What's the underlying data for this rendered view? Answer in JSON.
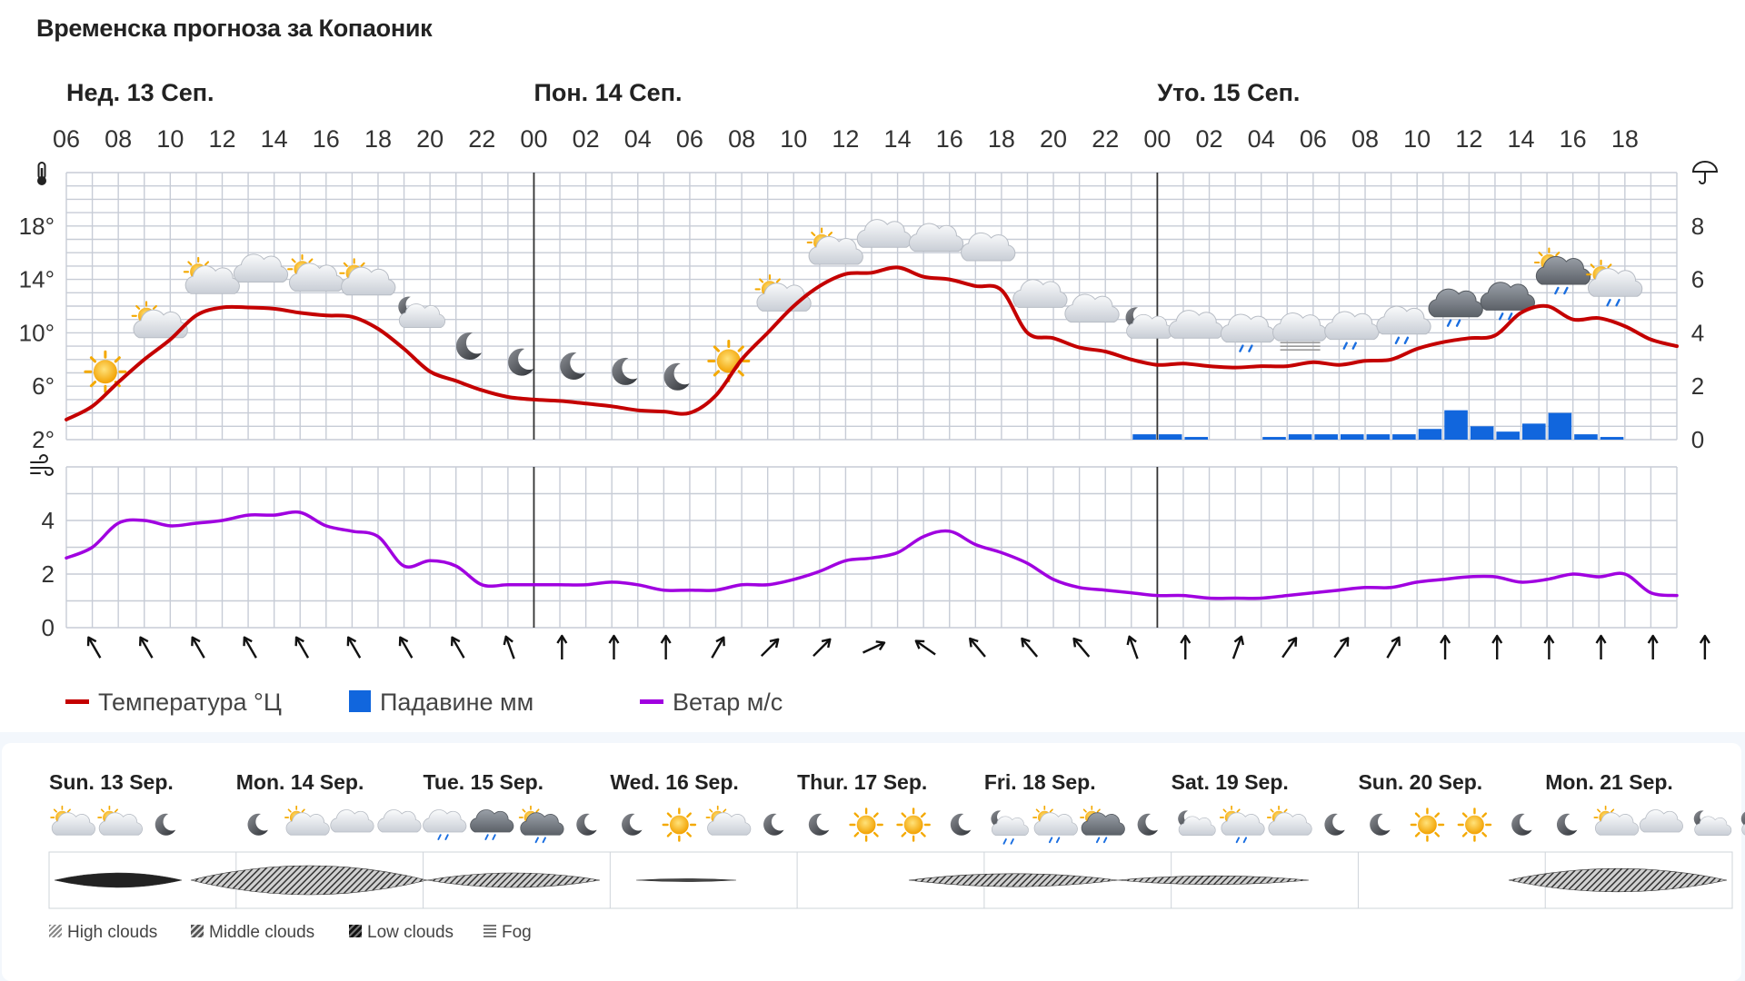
{
  "title": "Временска прогноза за Копаоник",
  "day_headers": [
    "Нед. 13 Сеп.",
    "Пон. 14 Сеп.",
    "Уто. 15 Сеп."
  ],
  "hour_labels": [
    "06",
    "08",
    "10",
    "12",
    "14",
    "16",
    "18",
    "20",
    "22",
    "00",
    "02",
    "04",
    "06",
    "08",
    "10",
    "12",
    "14",
    "16",
    "18",
    "20",
    "22",
    "00",
    "02",
    "04",
    "06",
    "08",
    "10",
    "12",
    "14",
    "16",
    "18"
  ],
  "legend": {
    "temperature": "Температура °Ц",
    "precipitation": "Падавине мм",
    "wind": "Ветар м/с"
  },
  "colors": {
    "temperature": "#c40000",
    "precipitation": "#1166dd",
    "wind": "#a000e0",
    "grid": "#c7ccd6",
    "day_divider": "#333333"
  },
  "chart_data": [
    {
      "type": "line",
      "name": "temperature",
      "unit": "°",
      "y_ticks": [
        "2°",
        "6°",
        "10°",
        "14°",
        "18°"
      ],
      "ylim": [
        2,
        22
      ],
      "x_hours": [
        6,
        7,
        8,
        9,
        10,
        11,
        12,
        13,
        14,
        15,
        16,
        17,
        18,
        19,
        20,
        21,
        22,
        23,
        24,
        25,
        26,
        27,
        28,
        29,
        30,
        31,
        32,
        33,
        34,
        35,
        36,
        37,
        38,
        39,
        40,
        41,
        42,
        43,
        44,
        45,
        46,
        47,
        48,
        49,
        50,
        51,
        52,
        53,
        54,
        55,
        56,
        57,
        58,
        59,
        60,
        61,
        62,
        63,
        64,
        65,
        66,
        67,
        68
      ],
      "values": [
        3.5,
        4.5,
        6.3,
        8.0,
        9.5,
        11.3,
        11.9,
        11.9,
        11.8,
        11.5,
        11.3,
        11.2,
        10.3,
        8.8,
        7.1,
        6.4,
        5.7,
        5.2,
        5.0,
        4.9,
        4.7,
        4.5,
        4.2,
        4.1,
        4.0,
        5.3,
        8.0,
        10.0,
        12.0,
        13.5,
        14.4,
        14.5,
        14.9,
        14.2,
        14.0,
        13.5,
        13.2,
        10.0,
        9.6,
        8.9,
        8.6,
        8.0,
        7.6,
        7.7,
        7.5,
        7.4,
        7.5,
        7.5,
        7.8,
        7.6,
        7.9,
        8.0,
        8.8,
        9.3,
        9.6,
        9.8,
        11.5,
        12.0,
        11.0,
        11.1,
        10.5,
        9.5,
        9.0
      ]
    },
    {
      "type": "bar",
      "name": "precipitation",
      "unit": "mm",
      "y_ticks": [
        "0",
        "2",
        "4",
        "6",
        "8"
      ],
      "ylim": [
        0,
        10
      ],
      "x_hours": [
        47,
        48,
        49,
        52,
        53,
        54,
        55,
        56,
        57,
        58,
        59,
        60,
        61,
        62,
        63,
        64,
        65
      ],
      "values": [
        0.2,
        0.2,
        0.1,
        0.1,
        0.2,
        0.2,
        0.2,
        0.2,
        0.2,
        0.4,
        1.1,
        0.5,
        0.3,
        0.6,
        1.0,
        0.2,
        0.1
      ]
    },
    {
      "type": "line",
      "name": "wind",
      "unit": "м/с",
      "y_ticks": [
        "0",
        "2",
        "4"
      ],
      "ylim": [
        0,
        6
      ],
      "x_hours": [
        6,
        7,
        8,
        9,
        10,
        11,
        12,
        13,
        14,
        15,
        16,
        17,
        18,
        19,
        20,
        21,
        22,
        23,
        24,
        25,
        26,
        27,
        28,
        29,
        30,
        31,
        32,
        33,
        34,
        35,
        36,
        37,
        38,
        39,
        40,
        41,
        42,
        43,
        44,
        45,
        46,
        47,
        48,
        49,
        50,
        51,
        52,
        53,
        54,
        55,
        56,
        57,
        58,
        59,
        60,
        61,
        62,
        63,
        64,
        65,
        66,
        67,
        68
      ],
      "values": [
        2.6,
        3.0,
        3.9,
        4.0,
        3.8,
        3.9,
        4.0,
        4.2,
        4.2,
        4.3,
        3.8,
        3.6,
        3.4,
        2.3,
        2.5,
        2.3,
        1.6,
        1.6,
        1.6,
        1.6,
        1.6,
        1.7,
        1.6,
        1.4,
        1.4,
        1.4,
        1.6,
        1.6,
        1.8,
        2.1,
        2.5,
        2.6,
        2.8,
        3.4,
        3.6,
        3.1,
        2.8,
        2.4,
        1.8,
        1.5,
        1.4,
        1.3,
        1.2,
        1.2,
        1.1,
        1.1,
        1.1,
        1.2,
        1.3,
        1.4,
        1.5,
        1.5,
        1.7,
        1.8,
        1.9,
        1.9,
        1.7,
        1.8,
        2.0,
        1.9,
        2.0,
        1.3,
        1.2
      ]
    }
  ],
  "wind_direction_deg": [
    150,
    150,
    150,
    150,
    150,
    150,
    150,
    150,
    160,
    180,
    180,
    180,
    210,
    225,
    225,
    245,
    125,
    140,
    140,
    140,
    160,
    180,
    200,
    215,
    215,
    210,
    180,
    180,
    180,
    180,
    180,
    180,
    190,
    220,
    240
  ],
  "weather_icons": [
    "sun",
    "sun-cloud",
    "sun-cloud",
    "cloud",
    "sun-cloud",
    "sun-cloud",
    "moon-cloud",
    "moon",
    "moon",
    "moon",
    "moon",
    "moon",
    "sun",
    "sun-cloud",
    "sun-cloud",
    "cloud",
    "cloud",
    "cloud",
    "cloud",
    "cloud",
    "moon-cloud",
    "cloud",
    "cloud-rain",
    "cloud-fog",
    "cloud-rain",
    "cloud-rain",
    "darkcloud-rain",
    "darkcloud-rain",
    "sun-darkcloud-rain",
    "sun-cloud-rain"
  ],
  "weekly": {
    "days": [
      "Sun. 13 Sep.",
      "Mon. 14 Sep.",
      "Tue. 15 Sep.",
      "Wed. 16 Sep.",
      "Thur. 17 Sep.",
      "Fri. 18 Sep.",
      "Sat. 19 Sep.",
      "Sun. 20 Sep.",
      "Mon. 21 Sep."
    ],
    "icons": [
      [
        "sun-cloud",
        "sun-cloud",
        "moon"
      ],
      [
        "moon",
        "sun-cloud",
        "cloud",
        "cloud"
      ],
      [
        "cloud-rain",
        "darkcloud-rain",
        "sun-darkcloud-rain",
        "moon"
      ],
      [
        "moon",
        "sun",
        "sun-cloud",
        "moon"
      ],
      [
        "moon",
        "sun",
        "sun",
        "moon"
      ],
      [
        "moon-cloud-rain",
        "sun-cloud-rain",
        "sun-darkcloud-rain",
        "moon"
      ],
      [
        "moon-cloud",
        "sun-cloud-rain",
        "sun-cloud",
        "moon"
      ],
      [
        "moon",
        "sun",
        "sun",
        "moon"
      ],
      [
        "moon",
        "sun-cloud",
        "cloud",
        "moon-cloud",
        "moon-cloud"
      ]
    ]
  },
  "cloud_legend": {
    "high": "High clouds",
    "middle": "Middle clouds",
    "low": "Low clouds",
    "fog": "Fog"
  }
}
